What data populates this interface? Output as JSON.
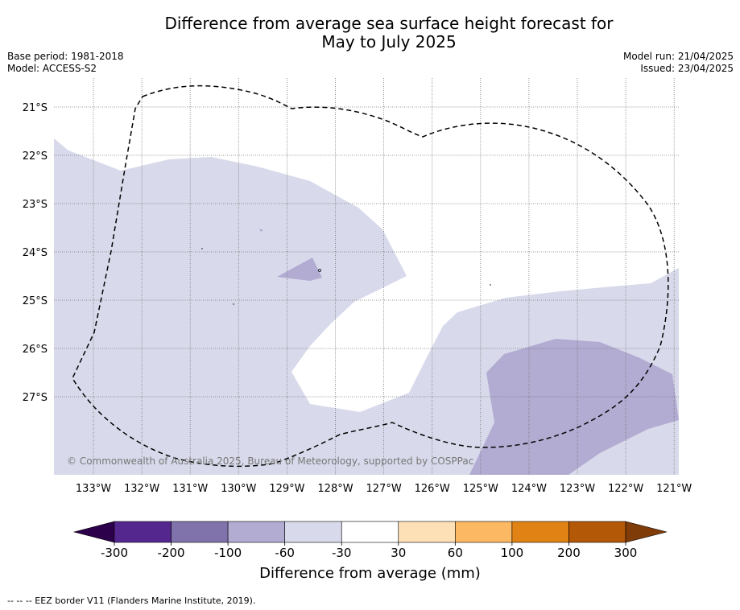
{
  "title_line1": "Difference from average sea surface height forecast for",
  "title_line2": "May to July 2025",
  "base_period": "Base period: 1981-2018",
  "model": "Model: ACCESS-S2",
  "model_run": "Model run: 21/04/2025",
  "issued": "Issued: 23/04/2025",
  "copyright": "© Commonwealth of Australia 2025, Bureau of Meteorology, supported by COSPPac",
  "lat_labels": [
    "21°S",
    "22°S",
    "23°S",
    "24°S",
    "25°S",
    "26°S",
    "27°S"
  ],
  "lon_labels": [
    "133°W",
    "132°W",
    "131°W",
    "130°W",
    "129°W",
    "128°W",
    "127°W",
    "126°W",
    "125°W",
    "124°W",
    "123°W",
    "122°W",
    "121°W"
  ],
  "colorbar": {
    "ticks": [
      "-300",
      "-200",
      "-100",
      "-60",
      "-30",
      "30",
      "60",
      "100",
      "200",
      "300"
    ],
    "colors": [
      "#54278f",
      "#8073ac",
      "#b2abd2",
      "#d8daeb",
      "#ffffff",
      "#fee0b6",
      "#fdb863",
      "#e08214",
      "#b35806"
    ],
    "under_color": "#2d004b",
    "over_color": "#7f3b08",
    "label": "Difference from average (mm)"
  },
  "footnote": "--  --  -- EEZ border V11 (Flanders Marine Institute, 2019)."
}
